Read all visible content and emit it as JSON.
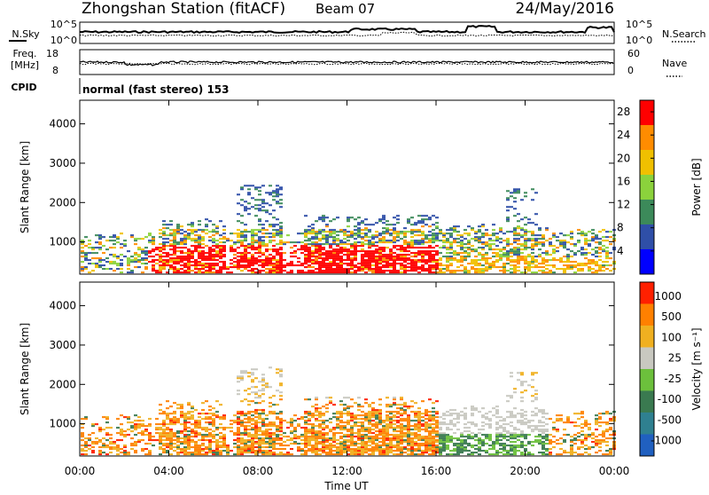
{
  "header": {
    "station": "Zhongshan Station (fitACF)",
    "beam": "Beam 07",
    "date": "24/May/2016"
  },
  "strip_panels": {
    "nsky_label": "N.Sky",
    "nsky_ticks": [
      "10^5",
      "10^0"
    ],
    "nsearch_label": "N.Search",
    "nsearch_ticks": [
      "10^5",
      "10^0"
    ],
    "freq_label": "Freq.",
    "freq_unit": "[MHz]",
    "freq_ticks": [
      "18",
      "8"
    ],
    "nave_label": "Nave",
    "nave_ticks": [
      "60",
      "0"
    ],
    "cpid_label": "CPID",
    "cpid_text": "normal (fast stereo) 153"
  },
  "chart_data": [
    {
      "type": "heatmap",
      "name": "power",
      "ylabel": "Slant Range [km]",
      "ylim": [
        180,
        4600
      ],
      "yticks": [
        1000,
        2000,
        3000,
        4000
      ],
      "colorbar_label": "Power [dB]",
      "colorbar_ticks": [
        4,
        8,
        12,
        16,
        20,
        24,
        28
      ],
      "colorbar_range": [
        0,
        30
      ],
      "colors": [
        "#0000ff",
        "#2f4fa8",
        "#3c8a5a",
        "#8bd23c",
        "#f0c000",
        "#ff8c00",
        "#ff0000"
      ]
    },
    {
      "type": "heatmap",
      "name": "velocity",
      "ylabel": "Slant Range [km]",
      "ylim": [
        180,
        4600
      ],
      "yticks": [
        1000,
        2000,
        3000,
        4000
      ],
      "colorbar_label": "Velocity [m s⁻¹]",
      "colorbar_ticks": [
        "1000",
        "500",
        "100",
        "25",
        "-25",
        "-100",
        "-500",
        "-1000"
      ],
      "colors": [
        "#2060c0",
        "#2f8090",
        "#3a7a50",
        "#6cc03c",
        "#c8c8c0",
        "#f0b020",
        "#ff8000",
        "#ff2000"
      ]
    }
  ],
  "time_axis": {
    "xlabel": "Time UT",
    "ticks": [
      "00:00",
      "04:00",
      "08:00",
      "12:00",
      "16:00",
      "20:00",
      "00:00"
    ],
    "xlim": [
      0,
      24
    ]
  }
}
